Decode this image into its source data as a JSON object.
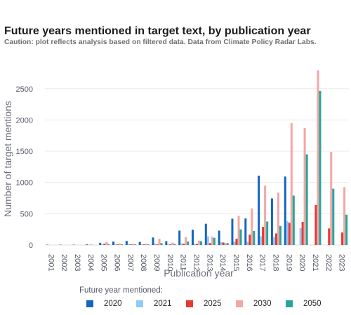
{
  "header": {
    "title": "Future years mentioned in target text, by publication year",
    "subtitle": "Caution: plot reflects analysis based on filtered data. Data from Climate Policy Radar Labs."
  },
  "legend": {
    "title": "Future year mentioned:",
    "placement": "bottom"
  },
  "chart_data": {
    "type": "bar",
    "title": "Future years mentioned in target text, by publication year",
    "xlabel": "Publication year",
    "ylabel": "Number of target mentions",
    "ylim": [
      0,
      2800
    ],
    "yticks": [
      0,
      500,
      1000,
      1500,
      2000,
      2500
    ],
    "grid": true,
    "categories": [
      "2001",
      "2002",
      "2003",
      "2004",
      "2005",
      "2006",
      "2007",
      "2008",
      "2009",
      "2010",
      "2011",
      "2012",
      "2013",
      "2014",
      "2015",
      "2016",
      "2017",
      "2018",
      "2019",
      "2020",
      "2021",
      "2022",
      "2023"
    ],
    "series": [
      {
        "name": "2020",
        "color": "#1565c0",
        "values": [
          5,
          5,
          5,
          10,
          35,
          55,
          65,
          50,
          120,
          60,
          230,
          245,
          340,
          230,
          420,
          425,
          1110,
          745,
          1095,
          0,
          0,
          0,
          0
        ]
      },
      {
        "name": "2021",
        "color": "#90caf9",
        "values": [
          0,
          0,
          0,
          0,
          10,
          10,
          20,
          10,
          20,
          10,
          25,
          20,
          140,
          45,
          55,
          50,
          140,
          130,
          380,
          270,
          0,
          0,
          0
        ]
      },
      {
        "name": "2025",
        "color": "#e53935",
        "values": [
          0,
          0,
          0,
          5,
          20,
          10,
          10,
          10,
          10,
          10,
          20,
          15,
          30,
          40,
          100,
          165,
          290,
          185,
          355,
          370,
          640,
          265,
          200
        ]
      },
      {
        "name": "2030",
        "color": "#f4a6a6",
        "values": [
          0,
          0,
          0,
          0,
          50,
          25,
          20,
          20,
          100,
          40,
          125,
          70,
          135,
          30,
          465,
          585,
          950,
          840,
          1950,
          1870,
          2795,
          1490,
          925
        ]
      },
      {
        "name": "2050",
        "color": "#26a69a",
        "values": [
          0,
          0,
          0,
          0,
          15,
          10,
          10,
          10,
          30,
          15,
          55,
          60,
          115,
          30,
          250,
          225,
          375,
          305,
          790,
          1450,
          2465,
          900,
          485
        ]
      }
    ]
  }
}
